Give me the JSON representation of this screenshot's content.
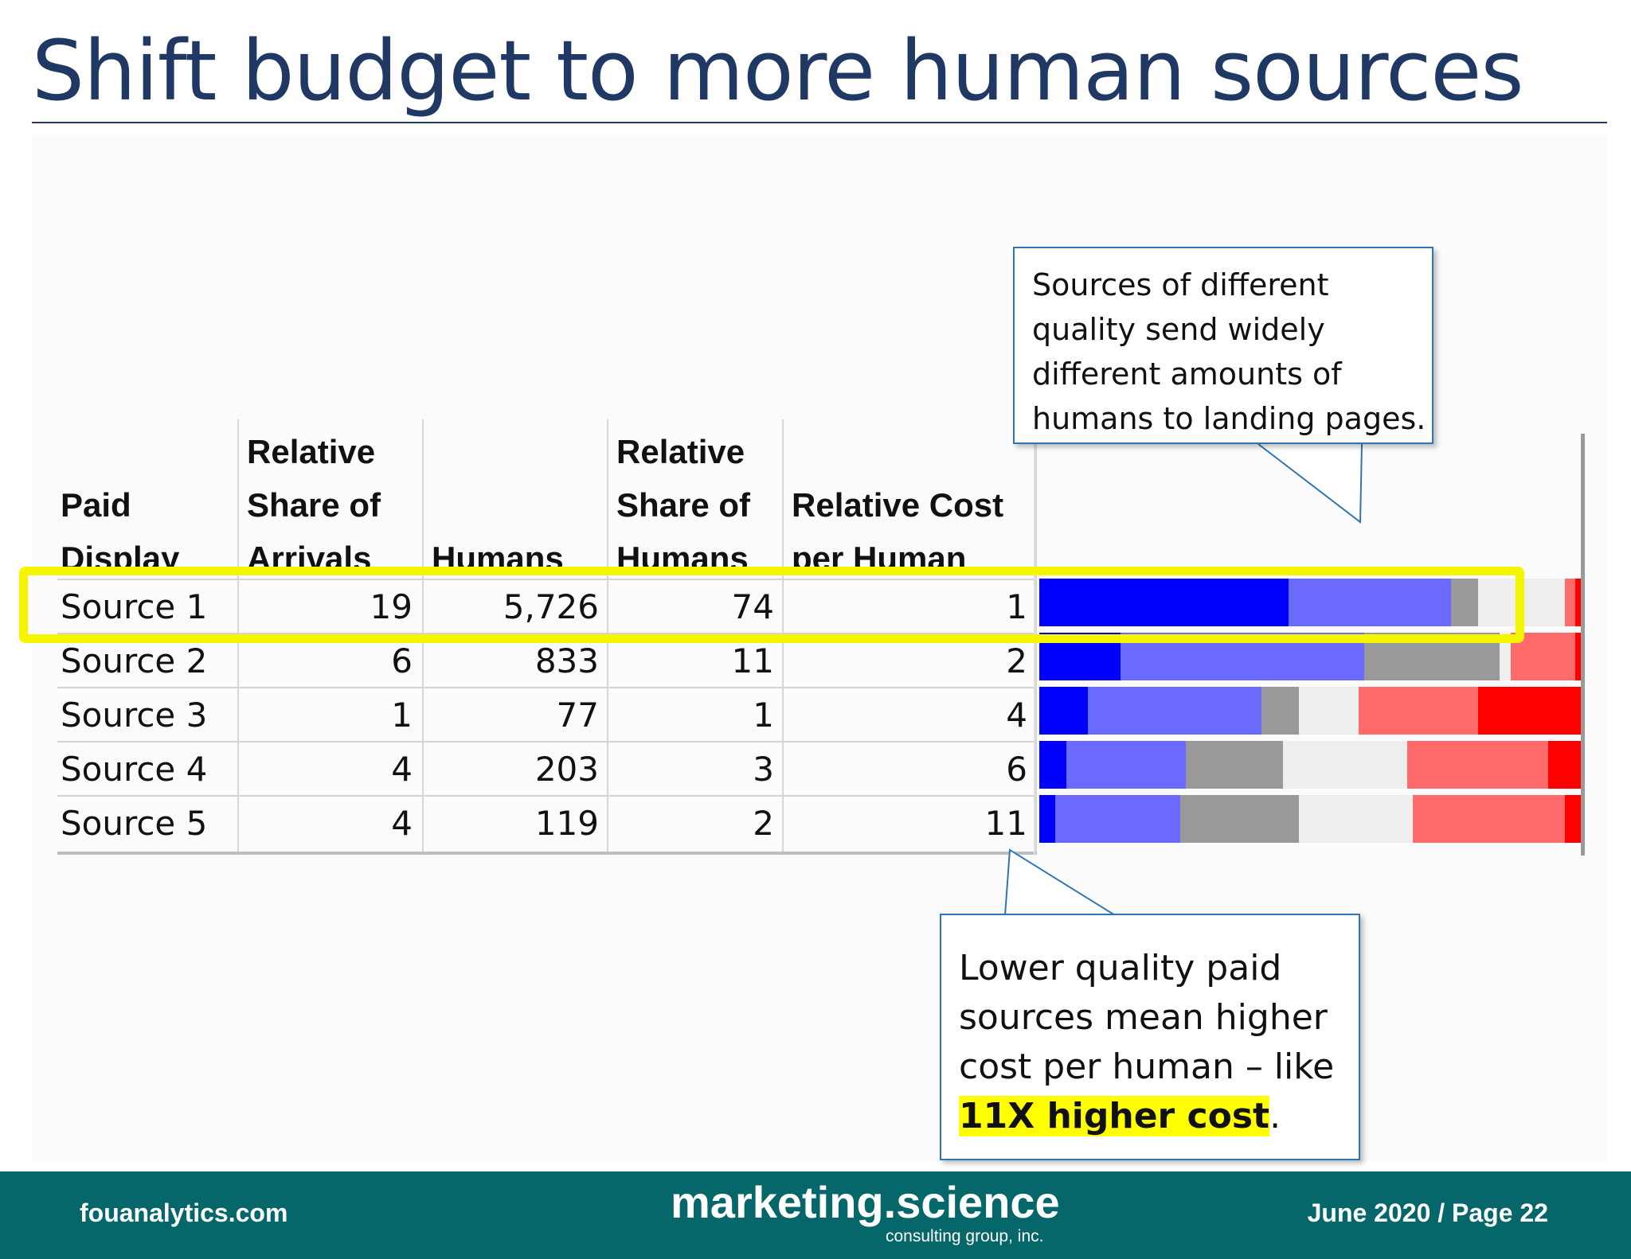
{
  "title": "Shift budget to more human sources",
  "table": {
    "headers": [
      "Paid Display",
      "Relative Share of Arrivals",
      "Humans",
      "Relative Share of Humans",
      "Relative Cost per Human"
    ],
    "rows": [
      {
        "label": "Source 1",
        "arrivals": "19",
        "humans": "5,726",
        "share_humans": "74",
        "cost": "1"
      },
      {
        "label": "Source 2",
        "arrivals": "6",
        "humans": "833",
        "share_humans": "11",
        "cost": "2"
      },
      {
        "label": "Source 3",
        "arrivals": "1",
        "humans": "77",
        "share_humans": "1",
        "cost": "4"
      },
      {
        "label": "Source 4",
        "arrivals": "4",
        "humans": "203",
        "share_humans": "3",
        "cost": "6"
      },
      {
        "label": "Source 5",
        "arrivals": "4",
        "humans": "119",
        "share_humans": "2",
        "cost": "11"
      }
    ],
    "highlighted_row": 0
  },
  "quality_bars": {
    "colors": [
      "#0000ff",
      "#6a6aff",
      "#999999",
      "#eeeeee",
      "#ff6a6a",
      "#ff0000"
    ],
    "rows": [
      [
        46,
        30,
        5,
        16,
        2,
        1
      ],
      [
        15,
        45,
        25,
        2,
        12,
        1
      ],
      [
        9,
        32,
        7,
        11,
        22,
        19
      ],
      [
        5,
        22,
        18,
        23,
        26,
        6
      ],
      [
        3,
        23,
        22,
        21,
        28,
        3
      ]
    ]
  },
  "callouts": {
    "top": "Sources of different quality send widely different amounts of humans to landing pages.",
    "bottom_text": "Lower quality paid sources mean higher cost per human – like ",
    "bottom_emphasis": "11X higher cost",
    "bottom_end": "."
  },
  "footer": {
    "left": "fouanalytics.com",
    "logo_main": "marketing.science",
    "logo_sub": "consulting group, inc.",
    "right": "June 2020 / Page 22"
  }
}
